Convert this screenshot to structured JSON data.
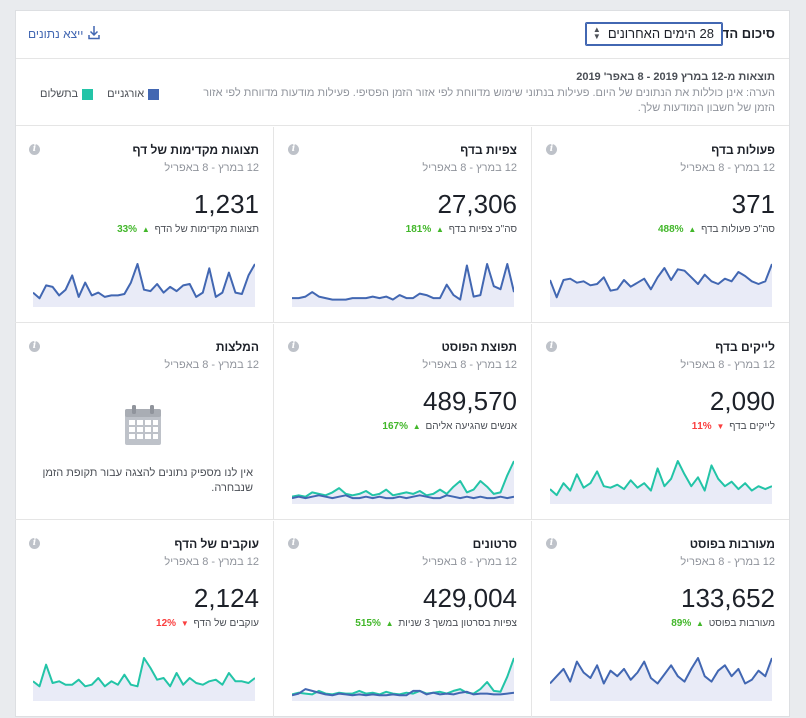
{
  "header": {
    "title": "סיכום הדף",
    "period": "28 הימים האחרונים",
    "export_label": "ייצא נתונים"
  },
  "intro": {
    "dates_line": "תוצאות מ-12 במרץ 2019 - 8 באפר' 2019",
    "note": "הערה: אינן כוללות את הנתונים של היום. פעילות בנתוני שימוש מדווחת לפי אזור הזמן הפסיפי. פעילות מודעות מדווחת לפי אזור הזמן של חשבון המודעות שלך."
  },
  "legend": {
    "organic": "אורגניים",
    "paid": "בתשלום",
    "organic_color": "#4267b2",
    "paid_color": "#23c4a7"
  },
  "cards": [
    {
      "title": "פעולות בדף",
      "dates": "12 במרץ - 8 באפריל",
      "value": "371",
      "change": "488%",
      "direction": "up",
      "change_label": "סה\"כ פעולות בדף",
      "series": [
        {
          "color": "#4267b2",
          "values": [
            18,
            5,
            18,
            19,
            16,
            17,
            14,
            15,
            20,
            10,
            11,
            18,
            13,
            16,
            19,
            11,
            20,
            27,
            18,
            26,
            25,
            20,
            15,
            22,
            17,
            15,
            19,
            17,
            24,
            21,
            17,
            15,
            17,
            30
          ]
        }
      ]
    },
    {
      "title": "צפיות בדף",
      "dates": "12 במרץ - 8 באפריל",
      "value": "27,306",
      "change": "181%",
      "direction": "up",
      "change_label": "סה\"כ צפיות בדף",
      "series": [
        {
          "color": "#4267b2",
          "values": [
            4,
            4,
            5,
            8,
            5,
            4,
            3,
            3,
            3,
            4,
            4,
            4,
            5,
            4,
            5,
            3,
            6,
            4,
            4,
            7,
            6,
            4,
            4,
            13,
            6,
            3,
            26,
            5,
            6,
            27,
            12,
            10,
            27,
            8
          ]
        }
      ]
    },
    {
      "title": "תצוגות מקדימות של דף",
      "dates": "12 במרץ - 8 באפריל",
      "value": "1,231",
      "change": "33%",
      "direction": "up",
      "change_label": "תצוגות מקדימות של הדף",
      "series": [
        {
          "color": "#4267b2",
          "values": [
            8,
            4,
            13,
            12,
            6,
            10,
            20,
            5,
            15,
            6,
            8,
            5,
            6,
            6,
            7,
            15,
            28,
            10,
            9,
            14,
            8,
            12,
            9,
            13,
            14,
            5,
            8,
            25,
            5,
            8,
            22,
            8,
            7,
            20,
            28
          ]
        }
      ]
    },
    {
      "title": "לייקים בדף",
      "dates": "12 במרץ - 8 באפריל",
      "value": "2,090",
      "change": "11%",
      "direction": "down",
      "change_label": "לייקים בדף",
      "series": [
        {
          "color": "#23c4a7",
          "values": [
            8,
            4,
            12,
            7,
            18,
            9,
            12,
            20,
            10,
            9,
            11,
            8,
            14,
            9,
            12,
            7,
            22,
            10,
            15,
            27,
            18,
            10,
            16,
            7,
            24,
            15,
            10,
            13,
            8,
            12,
            7,
            10,
            8,
            10
          ]
        }
      ]
    },
    {
      "title": "תפוצת הפוסט",
      "dates": "12 במרץ - 8 באפריל",
      "value": "489,570",
      "change": "167%",
      "direction": "up",
      "change_label": "אנשים שהגיעה אליהם",
      "series": [
        {
          "color": "#23c4a7",
          "values": [
            3,
            4,
            3,
            6,
            5,
            4,
            6,
            9,
            5,
            4,
            5,
            7,
            4,
            5,
            8,
            4,
            5,
            6,
            5,
            7,
            4,
            5,
            8,
            5,
            10,
            14,
            6,
            8,
            14,
            10,
            5,
            6,
            18,
            28
          ]
        },
        {
          "color": "#4267b2",
          "values": [
            2,
            3,
            2,
            3,
            4,
            3,
            2,
            3,
            4,
            2,
            2,
            3,
            2,
            3,
            2,
            2,
            3,
            2,
            3,
            4,
            3,
            2,
            2,
            4,
            3,
            2,
            3,
            2,
            3,
            2,
            2,
            3,
            2,
            3
          ]
        }
      ]
    },
    {
      "title": "המלצות",
      "dates": "12 במרץ - 8 באפריל",
      "no_data": "אין לנו מספיק נתונים להצגה עבור תקופת הזמן שנבחרה."
    },
    {
      "title": "מעורבות בפוסט",
      "dates": "12 במרץ - 8 באפריל",
      "value": "133,652",
      "change": "89%",
      "direction": "up",
      "change_label": "מעורבות בפוסט",
      "series": [
        {
          "color": "#4267b2",
          "values": [
            8,
            12,
            16,
            9,
            20,
            14,
            11,
            18,
            8,
            15,
            12,
            16,
            10,
            14,
            20,
            11,
            8,
            13,
            18,
            12,
            9,
            16,
            22,
            12,
            9,
            15,
            18,
            12,
            16,
            8,
            10,
            15,
            12,
            22
          ]
        }
      ]
    },
    {
      "title": "סרטונים",
      "dates": "12 במרץ - 8 באפריל",
      "value": "429,004",
      "change": "515%",
      "direction": "up",
      "change_label": "צפיות בסרטון במשך 3 שניות",
      "series": [
        {
          "color": "#23c4a7",
          "values": [
            4,
            6,
            5,
            4,
            8,
            5,
            4,
            6,
            5,
            5,
            8,
            5,
            6,
            4,
            7,
            5,
            4,
            6,
            5,
            8,
            5,
            6,
            7,
            5,
            8,
            10,
            6,
            5,
            10,
            18,
            8,
            7,
            24,
            45
          ]
        },
        {
          "color": "#4267b2",
          "values": [
            3,
            5,
            10,
            8,
            6,
            4,
            3,
            5,
            4,
            3,
            4,
            3,
            4,
            3,
            3,
            4,
            3,
            3,
            8,
            8,
            4,
            6,
            4,
            5,
            4,
            6,
            7,
            4,
            5,
            5,
            4,
            4,
            5,
            6
          ]
        }
      ]
    },
    {
      "title": "עוקבים של הדף",
      "dates": "12 במרץ - 8 באפריל",
      "value": "2,124",
      "change": "12%",
      "direction": "down",
      "change_label": "עוקבים של הדף",
      "series": [
        {
          "color": "#23c4a7",
          "values": [
            10,
            7,
            20,
            9,
            10,
            8,
            8,
            11,
            7,
            8,
            12,
            7,
            10,
            8,
            14,
            8,
            7,
            24,
            18,
            11,
            12,
            7,
            15,
            8,
            12,
            9,
            8,
            10,
            11,
            8,
            15,
            10,
            10,
            9,
            12
          ]
        }
      ]
    }
  ]
}
